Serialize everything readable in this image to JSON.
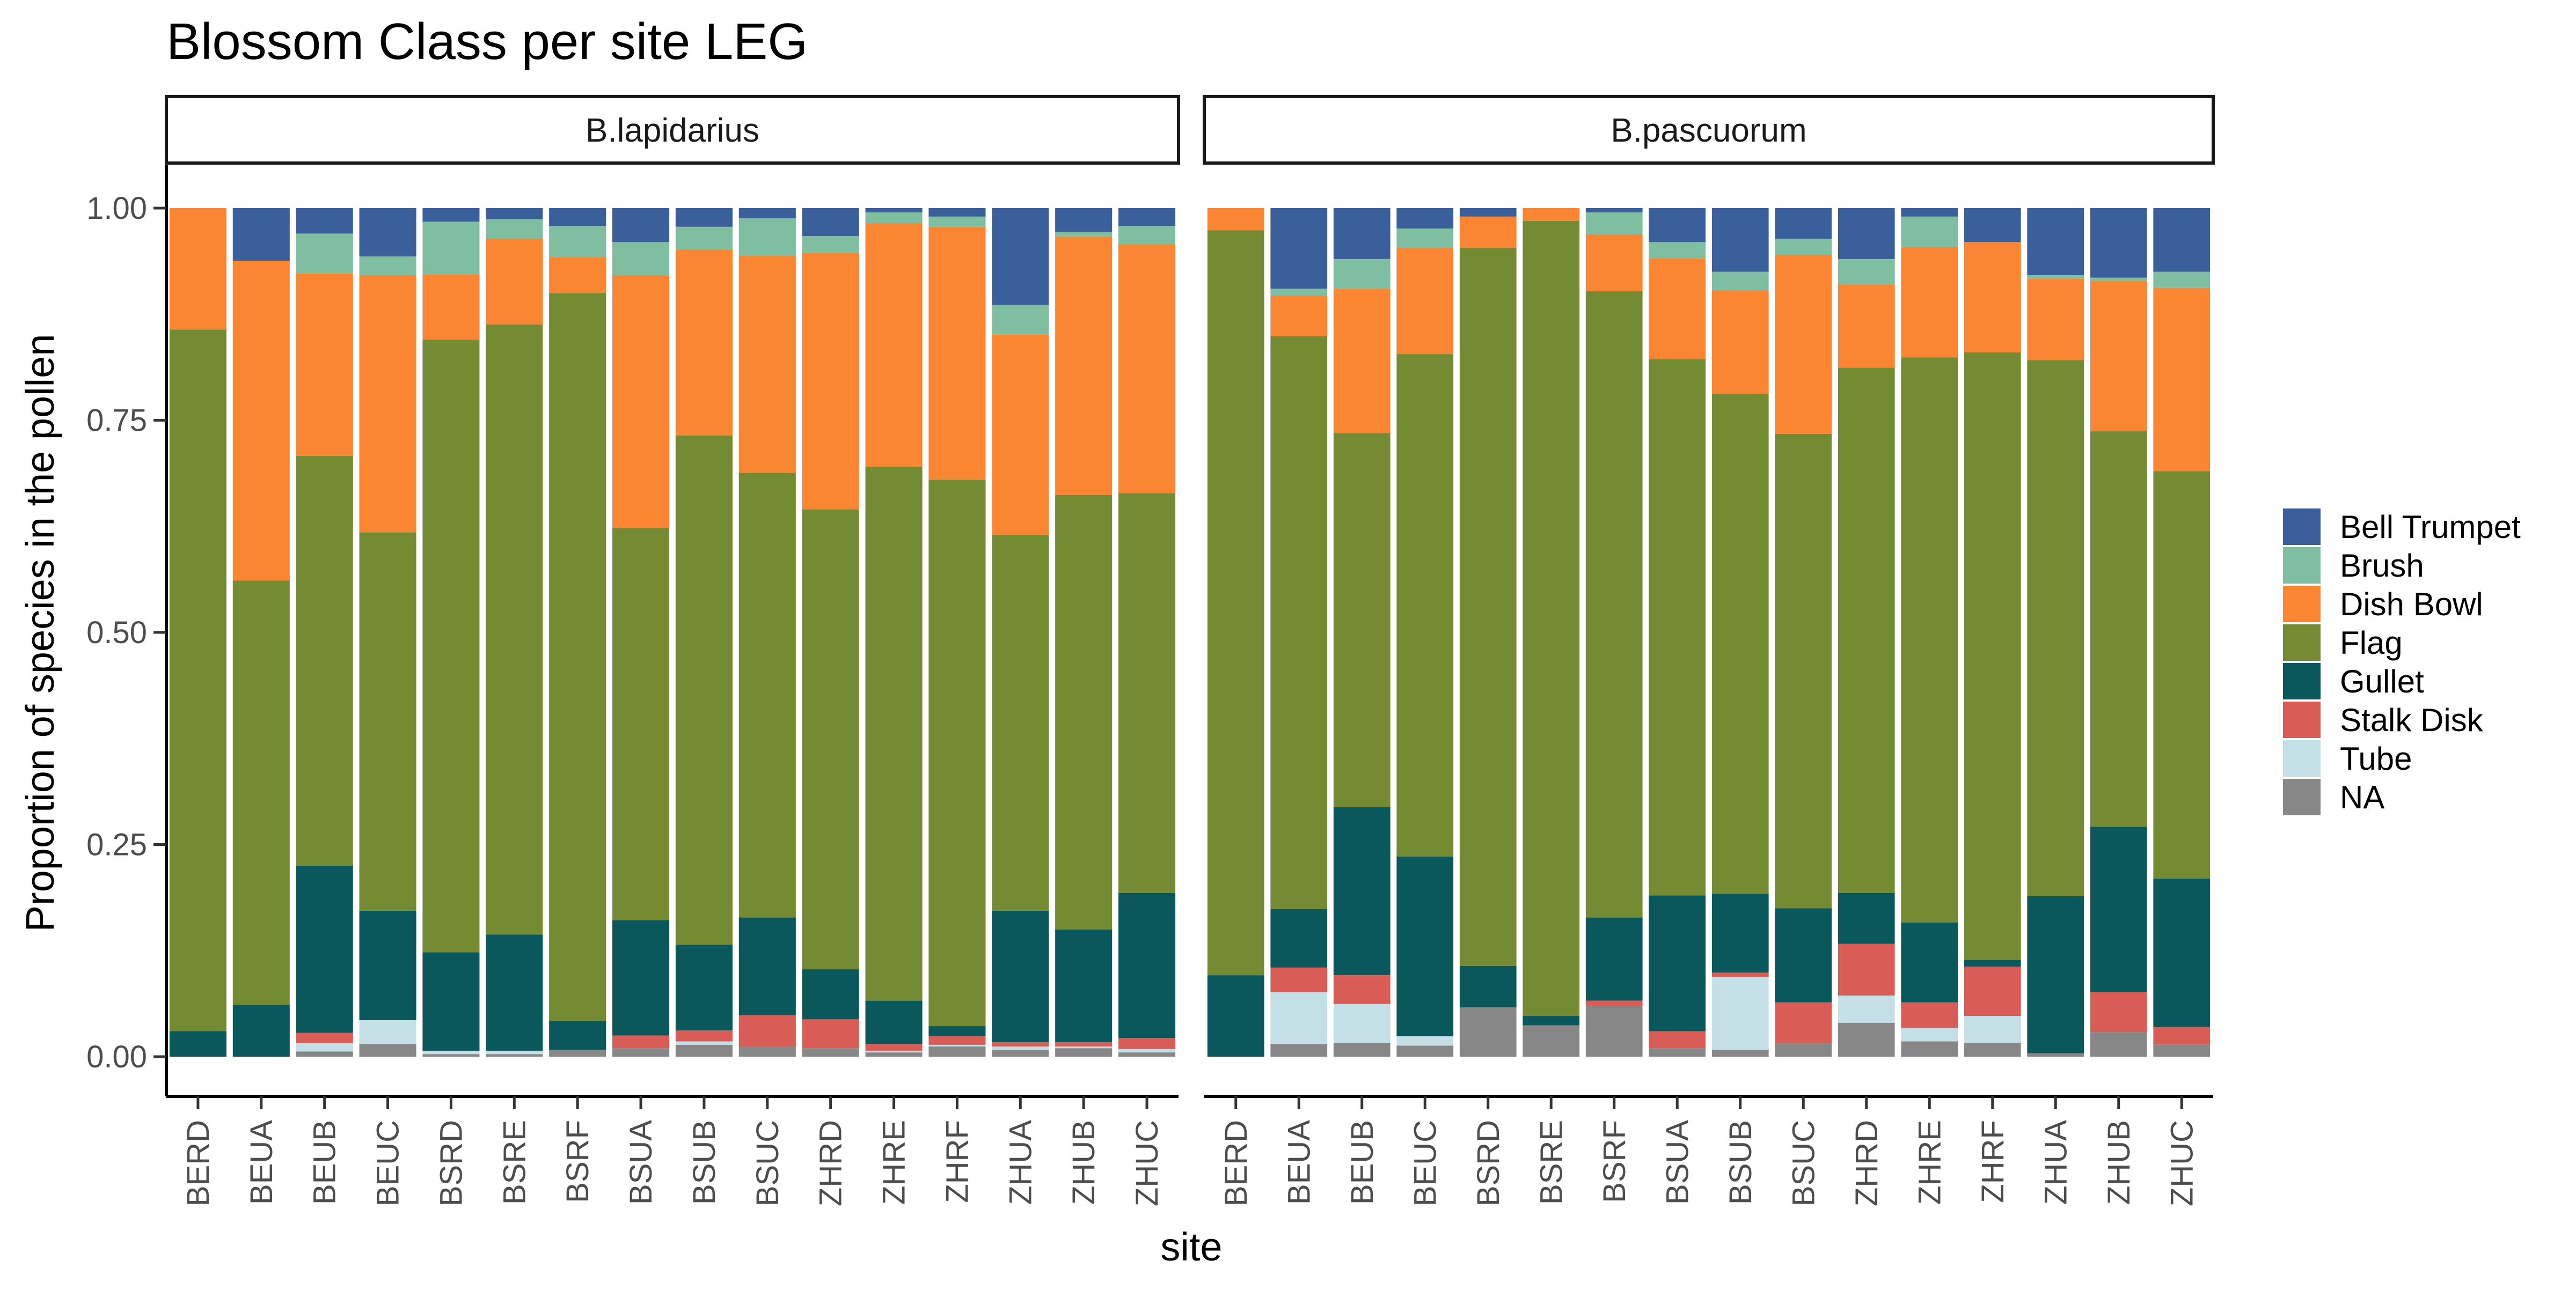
{
  "chart_data": {
    "type": "bar",
    "stacked": true,
    "title": "Blossom Class per site LEG",
    "xlabel": "site",
    "ylabel": "Proportion of species in the pollen",
    "ylim": [
      0,
      1
    ],
    "yticks": [
      "0.00",
      "0.25",
      "0.50",
      "0.75",
      "1.00"
    ],
    "ytick_values": [
      0,
      0.25,
      0.5,
      0.75,
      1
    ],
    "grid": false,
    "legend_position": "right",
    "categories": [
      "BERD",
      "BEUA",
      "BEUB",
      "BEUC",
      "BSRD",
      "BSRE",
      "BSRF",
      "BSUA",
      "BSUB",
      "BSUC",
      "ZHRD",
      "ZHRE",
      "ZHRF",
      "ZHUA",
      "ZHUB",
      "ZHUC"
    ],
    "series": [
      {
        "name": "Bell Trumpet",
        "color": "#3a5f9a"
      },
      {
        "name": "Brush",
        "color": "#7fbea0"
      },
      {
        "name": "Dish Bowl",
        "color": "#fa8532"
      },
      {
        "name": "Flag",
        "color": "#748b34"
      },
      {
        "name": "Gullet",
        "color": "#0a585b"
      },
      {
        "name": "Stalk Disk",
        "color": "#d95d56"
      },
      {
        "name": "Tube",
        "color": "#c4dfe5"
      },
      {
        "name": "NA",
        "color": "#878787"
      }
    ],
    "stack_order_bottom_to_top": [
      "NA",
      "Tube",
      "Stalk Disk",
      "Gullet",
      "Flag",
      "Dish Bowl",
      "Brush",
      "Bell Trumpet"
    ],
    "facets": [
      {
        "label": "B.lapidarius",
        "values": {
          "NA": [
            0.0,
            0.0,
            0.006,
            0.015,
            0.003,
            0.003,
            0.008,
            0.01,
            0.014,
            0.012,
            0.01,
            0.005,
            0.012,
            0.008,
            0.01,
            0.005
          ],
          "Tube": [
            0.0,
            0.0,
            0.01,
            0.028,
            0.004,
            0.004,
            0.0,
            0.0,
            0.004,
            0.0,
            0.0,
            0.002,
            0.002,
            0.004,
            0.002,
            0.004
          ],
          "Stalk Disk": [
            0.0,
            0.0,
            0.012,
            0.0,
            0.0,
            0.0,
            0.0,
            0.015,
            0.013,
            0.037,
            0.034,
            0.008,
            0.01,
            0.005,
            0.005,
            0.013
          ],
          "Gullet": [
            0.03,
            0.061,
            0.197,
            0.129,
            0.116,
            0.137,
            0.034,
            0.136,
            0.101,
            0.115,
            0.059,
            0.051,
            0.012,
            0.155,
            0.133,
            0.171
          ],
          "Flag": [
            0.827,
            0.5,
            0.483,
            0.446,
            0.722,
            0.719,
            0.858,
            0.462,
            0.6,
            0.524,
            0.542,
            0.629,
            0.644,
            0.443,
            0.512,
            0.471
          ],
          "Dish Bowl": [
            0.143,
            0.377,
            0.215,
            0.303,
            0.077,
            0.101,
            0.042,
            0.298,
            0.219,
            0.256,
            0.302,
            0.287,
            0.298,
            0.236,
            0.304,
            0.293
          ],
          "Brush": [
            0.0,
            0.0,
            0.047,
            0.022,
            0.062,
            0.023,
            0.037,
            0.039,
            0.027,
            0.044,
            0.02,
            0.013,
            0.012,
            0.035,
            0.006,
            0.022
          ],
          "Bell Trumpet": [
            0.0,
            0.062,
            0.03,
            0.057,
            0.016,
            0.013,
            0.021,
            0.04,
            0.022,
            0.012,
            0.033,
            0.005,
            0.01,
            0.114,
            0.028,
            0.021
          ]
        }
      },
      {
        "label": "B.pascuorum",
        "values": {
          "NA": [
            0.0,
            0.015,
            0.016,
            0.013,
            0.058,
            0.037,
            0.06,
            0.01,
            0.008,
            0.016,
            0.04,
            0.018,
            0.016,
            0.004,
            0.029,
            0.014
          ],
          "Tube": [
            0.0,
            0.061,
            0.046,
            0.011,
            0.0,
            0.0,
            0.0,
            0.0,
            0.086,
            0.0,
            0.032,
            0.016,
            0.032,
            0.0,
            0.0,
            0.0
          ],
          "Stalk Disk": [
            0.0,
            0.029,
            0.034,
            0.0,
            0.0,
            0.0,
            0.006,
            0.02,
            0.005,
            0.048,
            0.061,
            0.03,
            0.058,
            0.0,
            0.047,
            0.021
          ],
          "Gullet": [
            0.096,
            0.069,
            0.198,
            0.212,
            0.049,
            0.011,
            0.098,
            0.16,
            0.093,
            0.111,
            0.06,
            0.094,
            0.008,
            0.185,
            0.195,
            0.175
          ],
          "Flag": [
            0.878,
            0.675,
            0.441,
            0.592,
            0.846,
            0.937,
            0.738,
            0.632,
            0.589,
            0.559,
            0.619,
            0.666,
            0.716,
            0.632,
            0.466,
            0.48
          ],
          "Dish Bowl": [
            0.026,
            0.048,
            0.17,
            0.125,
            0.037,
            0.015,
            0.067,
            0.119,
            0.122,
            0.211,
            0.098,
            0.13,
            0.13,
            0.096,
            0.177,
            0.216
          ],
          "Brush": [
            0.0,
            0.008,
            0.035,
            0.023,
            0.0,
            0.0,
            0.026,
            0.019,
            0.022,
            0.019,
            0.03,
            0.036,
            0.0,
            0.004,
            0.004,
            0.019
          ],
          "Bell Trumpet": [
            0.0,
            0.095,
            0.06,
            0.024,
            0.01,
            0.0,
            0.005,
            0.04,
            0.075,
            0.036,
            0.06,
            0.01,
            0.04,
            0.079,
            0.082,
            0.075
          ]
        }
      }
    ]
  }
}
